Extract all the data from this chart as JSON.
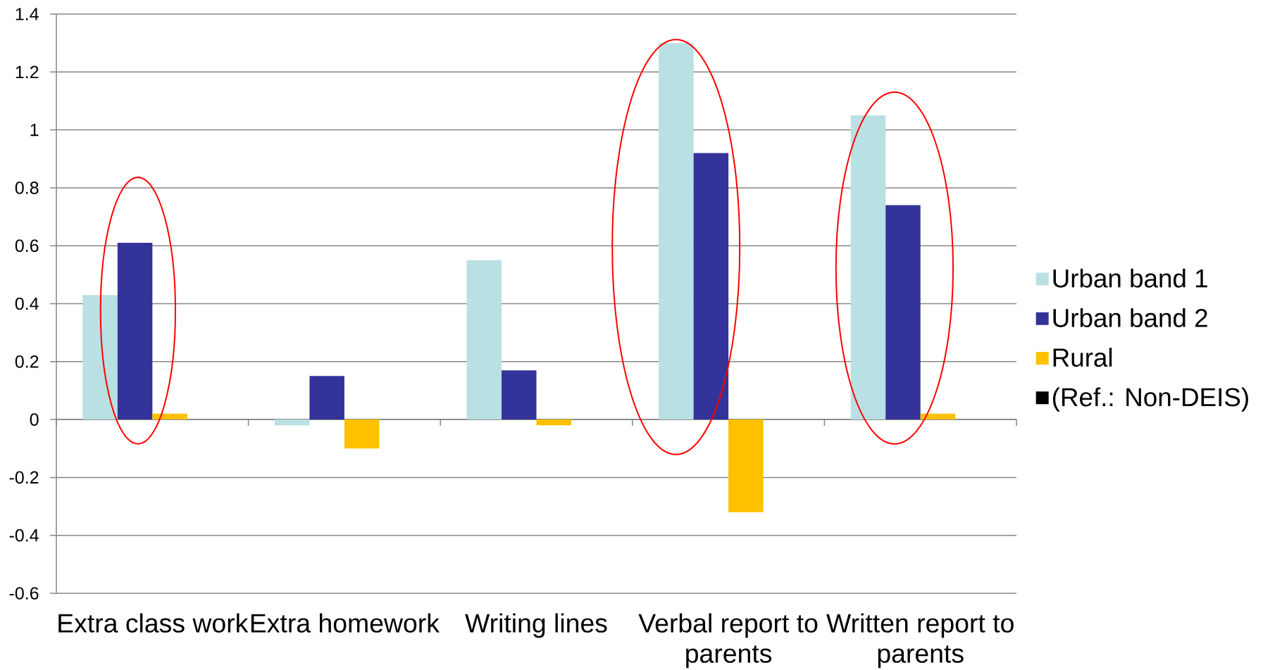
{
  "chart_data": {
    "type": "bar",
    "categories": [
      "Extra class work",
      "Extra homework",
      "Writing lines",
      "Verbal report to parents",
      "Written report to parents"
    ],
    "series": [
      {
        "name": "Urban band 1",
        "color": "#b9e0e3",
        "values": [
          0.43,
          -0.02,
          0.55,
          1.3,
          1.05
        ]
      },
      {
        "name": "Urban band 2",
        "color": "#333399",
        "values": [
          0.61,
          0.15,
          0.17,
          0.92,
          0.74
        ]
      },
      {
        "name": "Rural",
        "color": "#ffc000",
        "values": [
          0.02,
          -0.1,
          -0.02,
          -0.32,
          0.02
        ]
      },
      {
        "name": "(Ref.: Non-DEIS)",
        "color": "#000000",
        "values": [
          0,
          0,
          0,
          0,
          0
        ]
      }
    ],
    "ylim": [
      -0.6,
      1.4
    ],
    "yticks": [
      -0.6,
      -0.4,
      -0.2,
      0,
      0.2,
      0.4,
      0.6,
      0.8,
      1,
      1.2,
      1.4
    ],
    "grid": "y",
    "legend": "right"
  }
}
